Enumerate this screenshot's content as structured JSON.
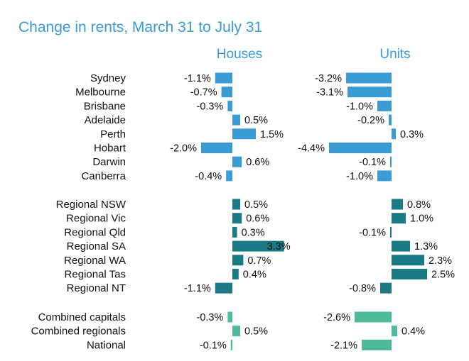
{
  "chart_data": {
    "type": "bar",
    "orientation": "horizontal",
    "title": "Change in rents, March 31 to July 31",
    "series": [
      {
        "name": "Houses",
        "values": [
          -1.1,
          -0.7,
          -0.3,
          0.5,
          1.5,
          -2.0,
          0.6,
          -0.4,
          0.5,
          0.6,
          0.3,
          3.3,
          0.7,
          0.4,
          -1.1,
          -0.3,
          0.5,
          -0.1
        ]
      },
      {
        "name": "Units",
        "values": [
          -3.2,
          -3.1,
          -1.0,
          -0.2,
          0.3,
          -4.4,
          -0.1,
          -1.0,
          0.8,
          1.0,
          -0.1,
          1.3,
          2.3,
          2.5,
          -0.8,
          -2.6,
          0.4,
          -2.1
        ]
      }
    ],
    "groups": [
      {
        "name": "capitals",
        "color": "#3a9bd5",
        "categories": [
          "Sydney",
          "Melbourne",
          "Brisbane",
          "Adelaide",
          "Perth",
          "Hobart",
          "Darwin",
          "Canberra"
        ]
      },
      {
        "name": "regionals",
        "color": "#1a7a86",
        "categories": [
          "Regional NSW",
          "Regional Vic",
          "Regional Qld",
          "Regional SA",
          "Regional WA",
          "Regional Tas",
          "Regional NT"
        ]
      },
      {
        "name": "aggregates",
        "color": "#4dbb9b",
        "categories": [
          "Combined capitals",
          "Combined regionals",
          "National"
        ]
      }
    ],
    "value_suffix": "%",
    "xlabel": "",
    "ylabel": "",
    "grid": false,
    "legend": "none"
  }
}
